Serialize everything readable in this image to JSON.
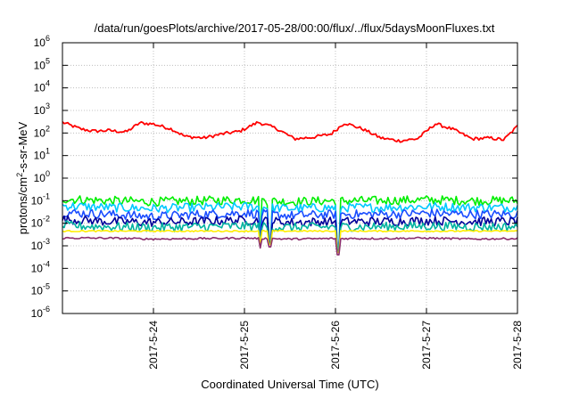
{
  "chart_data": {
    "type": "line",
    "title": "/data/run/goesPlots/archive/2017-05-28/00:00/flux/../flux/5daysMoonFluxes.txt",
    "xlabel": "Coordinated Universal Time (UTC)",
    "ylabel_parts": {
      "pre": "protons/cm",
      "sup": "2",
      "post": "-s-sr-MeV"
    },
    "y_scale": "log",
    "ylim": [
      1e-06,
      1000000.0
    ],
    "xlim": [
      "2017-05-23 00:00",
      "2017-05-28 00:00"
    ],
    "grid": true,
    "y_ticks": [
      {
        "exp": -6
      },
      {
        "exp": -5
      },
      {
        "exp": -4
      },
      {
        "exp": -3
      },
      {
        "exp": -2
      },
      {
        "exp": -1
      },
      {
        "exp": 0
      },
      {
        "exp": 1
      },
      {
        "exp": 2
      },
      {
        "exp": 3
      },
      {
        "exp": 4
      },
      {
        "exp": 5
      },
      {
        "exp": 6
      }
    ],
    "x_ticks": [
      {
        "label": "2017-5-24",
        "day": 1
      },
      {
        "label": "2017-5-25",
        "day": 2
      },
      {
        "label": "2017-5-26",
        "day": 3
      },
      {
        "label": "2017-5-27",
        "day": 4
      },
      {
        "label": "2017-5-28",
        "day": 5
      }
    ],
    "series": [
      {
        "color": "#ff0000",
        "x_days": [
          0,
          0.2,
          0.35,
          0.5,
          0.7,
          0.85,
          1.0,
          1.2,
          1.35,
          1.55,
          1.75,
          1.95,
          2.15,
          2.35,
          2.55,
          2.75,
          2.95,
          3.1,
          3.3,
          3.5,
          3.7,
          3.9,
          4.1,
          4.3,
          4.5,
          4.7,
          4.85,
          5.0
        ],
        "y": [
          300,
          150,
          120,
          130,
          110,
          280,
          250,
          150,
          70,
          60,
          90,
          120,
          300,
          160,
          55,
          65,
          90,
          280,
          150,
          60,
          45,
          55,
          260,
          140,
          55,
          60,
          50,
          200
        ]
      },
      {
        "color": "#00ee00",
        "x_days": [
          0,
          0.5,
          1,
          1.5,
          2,
          2.5,
          3,
          3.5,
          4,
          4.5,
          5
        ],
        "y": [
          0.12,
          0.1,
          0.09,
          0.1,
          0.11,
          0.09,
          0.1,
          0.1,
          0.11,
          0.1,
          0.1
        ]
      },
      {
        "color": "#00c8ff",
        "x_days": [
          0,
          0.5,
          1,
          1.5,
          2,
          2.5,
          3,
          3.5,
          4,
          4.5,
          5
        ],
        "y": [
          0.06,
          0.05,
          0.045,
          0.05,
          0.055,
          0.045,
          0.05,
          0.05,
          0.055,
          0.05,
          0.05
        ]
      },
      {
        "color": "#1a4dff",
        "x_days": [
          0,
          0.5,
          1,
          1.5,
          2,
          2.5,
          3,
          3.5,
          4,
          4.5,
          5
        ],
        "y": [
          0.03,
          0.025,
          0.02,
          0.025,
          0.028,
          0.022,
          0.025,
          0.025,
          0.028,
          0.025,
          0.025
        ]
      },
      {
        "color": "#000099",
        "x_days": [
          0,
          0.5,
          1,
          1.5,
          2,
          2.5,
          3,
          3.5,
          4,
          4.5,
          5
        ],
        "y": [
          0.015,
          0.012,
          0.011,
          0.012,
          0.014,
          0.011,
          0.012,
          0.012,
          0.013,
          0.012,
          0.012
        ]
      },
      {
        "color": "#00b3a0",
        "x_days": [
          0,
          0.5,
          1,
          1.5,
          2,
          2.5,
          3,
          3.5,
          4,
          4.5,
          5
        ],
        "y": [
          0.008,
          0.007,
          0.0065,
          0.007,
          0.0075,
          0.0065,
          0.007,
          0.007,
          0.0075,
          0.007,
          0.007
        ]
      },
      {
        "color": "#ffee00",
        "x_days": [
          0,
          0.5,
          1,
          1.5,
          2,
          2.5,
          3,
          3.5,
          4,
          4.5,
          5
        ],
        "y": [
          0.0045,
          0.0045,
          0.0045,
          0.0045,
          0.0045,
          0.0045,
          0.0045,
          0.0045,
          0.0045,
          0.0045,
          0.0045
        ]
      },
      {
        "color": "#8b2e6e",
        "x_days": [
          0,
          0.5,
          1,
          1.5,
          2,
          2.5,
          3,
          3.5,
          4,
          4.5,
          5
        ],
        "y": [
          0.0022,
          0.0022,
          0.002,
          0.0021,
          0.0022,
          0.002,
          0.0021,
          0.0021,
          0.0022,
          0.002,
          0.0021
        ]
      }
    ],
    "dips": {
      "days": [
        2.18,
        2.28,
        3.03
      ],
      "depth_min": [
        0.0008,
        0.0009,
        0.0004
      ]
    }
  }
}
